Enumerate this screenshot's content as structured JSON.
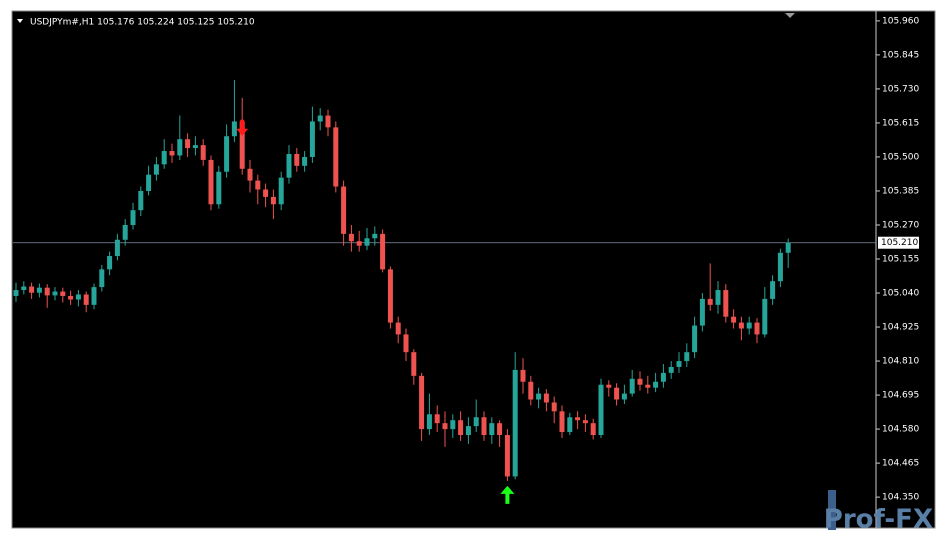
{
  "chart_data": {
    "type": "candlestick",
    "title": "USDJPYm#,H1  105.176 105.224 105.125 105.210",
    "open": [
      105.03,
      105.05,
      105.062,
      105.041,
      105.058,
      105.032,
      105.045,
      105.03,
      105.018,
      105.035,
      105.0,
      105.06,
      105.12,
      105.165,
      105.22,
      105.27,
      105.32,
      105.385,
      105.44,
      105.475,
      105.52,
      105.505,
      105.56,
      105.53,
      105.54,
      105.49,
      105.34,
      105.45,
      105.57,
      105.62,
      105.46,
      105.42,
      105.39,
      105.365,
      105.34,
      105.43,
      105.51,
      105.47,
      105.5,
      105.62,
      105.64,
      105.6,
      105.4,
      105.24,
      105.215,
      105.2,
      105.225,
      105.24,
      105.12,
      104.94,
      104.9,
      104.84,
      104.76,
      104.58,
      104.63,
      104.6,
      104.58,
      104.61,
      104.56,
      104.59,
      104.62,
      104.56,
      104.6,
      104.56,
      104.42,
      104.78,
      104.74,
      104.68,
      104.7,
      104.67,
      104.64,
      104.57,
      104.62,
      104.61,
      104.6,
      104.56,
      104.73,
      104.72,
      104.68,
      104.7,
      104.75,
      104.73,
      104.72,
      104.74,
      104.77,
      104.79,
      104.81,
      104.84,
      104.93,
      105.02,
      105.0,
      105.05,
      104.96,
      104.94,
      104.92,
      104.94,
      104.9,
      105.02,
      105.08,
      105.176
    ],
    "high": [
      105.075,
      105.08,
      105.075,
      105.072,
      105.07,
      105.06,
      105.058,
      105.048,
      105.05,
      105.045,
      105.072,
      105.135,
      105.18,
      105.24,
      105.29,
      105.345,
      105.4,
      105.47,
      105.5,
      105.56,
      105.545,
      105.64,
      105.58,
      105.57,
      105.56,
      105.505,
      105.47,
      105.61,
      105.76,
      105.7,
      105.49,
      105.44,
      105.41,
      105.39,
      105.45,
      105.54,
      105.53,
      105.52,
      105.67,
      105.665,
      105.66,
      105.62,
      105.42,
      105.27,
      105.25,
      105.26,
      105.265,
      105.255,
      105.13,
      104.96,
      104.92,
      104.85,
      104.77,
      104.7,
      104.66,
      104.64,
      104.63,
      104.64,
      104.62,
      104.68,
      104.64,
      104.62,
      104.61,
      104.58,
      104.84,
      104.82,
      104.76,
      104.72,
      104.715,
      104.69,
      104.66,
      104.635,
      104.64,
      104.63,
      104.615,
      104.75,
      104.745,
      104.735,
      104.73,
      104.78,
      104.775,
      104.76,
      104.77,
      104.8,
      104.81,
      104.84,
      104.87,
      104.96,
      105.04,
      105.14,
      105.08,
      105.07,
      104.985,
      104.96,
      104.96,
      104.955,
      105.06,
      105.1,
      105.19,
      105.224
    ],
    "low": [
      105.01,
      105.035,
      105.02,
      105.025,
      104.99,
      105.015,
      105.008,
      105.0,
      104.995,
      104.975,
      104.985,
      105.045,
      105.1,
      105.15,
      105.2,
      105.255,
      105.3,
      105.37,
      105.42,
      105.46,
      105.48,
      105.49,
      105.5,
      105.505,
      105.47,
      105.32,
      105.325,
      105.43,
      105.55,
      105.44,
      105.38,
      105.34,
      105.33,
      105.29,
      105.32,
      105.41,
      105.45,
      105.45,
      105.48,
      105.59,
      105.57,
      105.38,
      105.2,
      105.18,
      105.18,
      105.185,
      105.2,
      105.11,
      104.92,
      104.87,
      104.81,
      104.73,
      104.54,
      104.56,
      104.57,
      104.52,
      104.55,
      104.54,
      104.53,
      104.57,
      104.54,
      104.53,
      104.52,
      104.405,
      104.41,
      104.7,
      104.66,
      104.65,
      104.64,
      104.6,
      104.55,
      104.56,
      104.58,
      104.57,
      104.545,
      104.55,
      104.69,
      104.66,
      104.665,
      104.69,
      104.71,
      104.7,
      104.705,
      104.72,
      104.75,
      104.77,
      104.79,
      104.82,
      104.91,
      104.98,
      104.97,
      104.94,
      104.92,
      104.88,
      104.9,
      104.87,
      104.89,
      105.0,
      105.06,
      105.125
    ],
    "close": [
      105.05,
      105.062,
      105.041,
      105.058,
      105.032,
      105.045,
      105.03,
      105.018,
      105.035,
      105.0,
      105.06,
      105.12,
      105.165,
      105.22,
      105.27,
      105.32,
      105.385,
      105.44,
      105.475,
      105.52,
      105.505,
      105.56,
      105.53,
      105.54,
      105.49,
      105.34,
      105.45,
      105.57,
      105.62,
      105.46,
      105.42,
      105.39,
      105.365,
      105.34,
      105.43,
      105.51,
      105.47,
      105.5,
      105.62,
      105.64,
      105.6,
      105.4,
      105.24,
      105.215,
      105.2,
      105.225,
      105.24,
      105.12,
      104.94,
      104.9,
      104.84,
      104.76,
      104.58,
      104.63,
      104.6,
      104.58,
      104.61,
      104.56,
      104.59,
      104.62,
      104.56,
      104.6,
      104.56,
      104.42,
      104.78,
      104.74,
      104.68,
      104.7,
      104.67,
      104.64,
      104.57,
      104.62,
      104.61,
      104.6,
      104.56,
      104.73,
      104.72,
      104.68,
      104.7,
      104.75,
      104.73,
      104.72,
      104.74,
      104.77,
      104.79,
      104.81,
      104.84,
      104.93,
      105.02,
      105.0,
      105.05,
      104.96,
      104.94,
      104.92,
      104.94,
      104.9,
      105.02,
      105.08,
      105.176,
      105.21
    ],
    "up_color": "#26a69a",
    "down_color": "#ef5350",
    "ylim": [
      104.249,
      105.99
    ],
    "yticks": [
      {
        "value": 105.96,
        "label": "105.960"
      },
      {
        "value": 105.845,
        "label": "105.845"
      },
      {
        "value": 105.73,
        "label": "105.730"
      },
      {
        "value": 105.615,
        "label": "105.615"
      },
      {
        "value": 105.5,
        "label": "105.500"
      },
      {
        "value": 105.385,
        "label": "105.385"
      },
      {
        "value": 105.27,
        "label": "105.270"
      },
      {
        "value": 105.155,
        "label": "105.155"
      },
      {
        "value": 105.04,
        "label": "105.040"
      },
      {
        "value": 104.925,
        "label": "104.925"
      },
      {
        "value": 104.81,
        "label": "104.810"
      },
      {
        "value": 104.695,
        "label": "104.695"
      },
      {
        "value": 104.58,
        "label": "104.580"
      },
      {
        "value": 104.465,
        "label": "104.465"
      },
      {
        "value": 104.35,
        "label": "104.350"
      }
    ],
    "grid": false,
    "current_price": {
      "value": 105.21,
      "label": "105.210"
    },
    "signals": [
      {
        "index": 29,
        "direction": "down",
        "color": "#ff1a1a"
      },
      {
        "index": 63,
        "direction": "up",
        "color": "#1aff1a"
      }
    ],
    "watermark": "Prof-FX"
  }
}
